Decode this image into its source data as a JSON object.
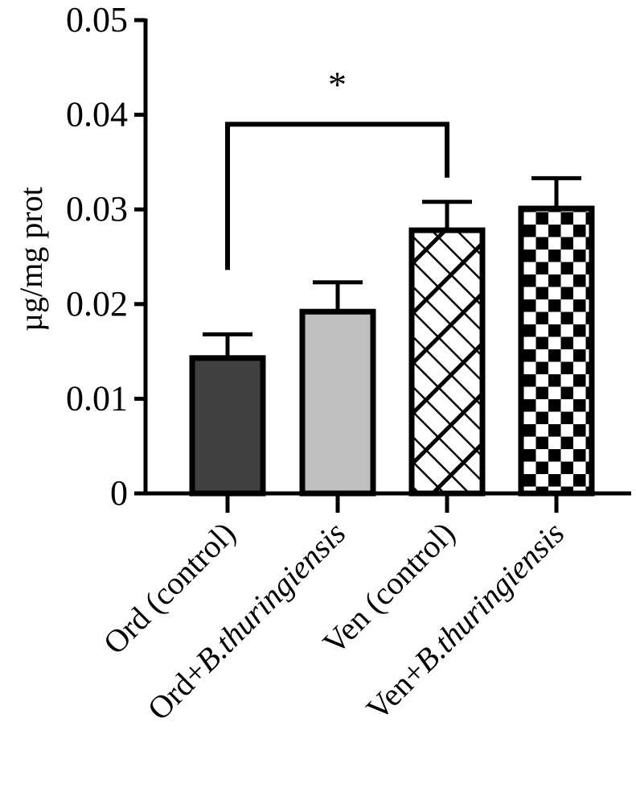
{
  "chart_data": {
    "type": "bar",
    "title": "",
    "xlabel": "",
    "ylabel": "µg/mg prot",
    "ylim": [
      0,
      0.05
    ],
    "y_ticks": [
      "0",
      "0.01",
      "0.02",
      "0.03",
      "0.04",
      "0.05"
    ],
    "grid": false,
    "bars": [
      {
        "label_plain": "Ord (control)",
        "label_prefix": "Ord (control)",
        "label_italic": "",
        "value": 0.0143,
        "error": 0.0025,
        "fill": "dark-gray",
        "pattern": "solid"
      },
      {
        "label_plain": "Ord+B.thuringiensis",
        "label_prefix": "Ord+",
        "label_italic": "B.thuringiensis",
        "value": 0.0192,
        "error": 0.0031,
        "fill": "light-gray",
        "pattern": "solid"
      },
      {
        "label_plain": "Ven (control)",
        "label_prefix": "Ven (control)",
        "label_italic": "",
        "value": 0.0278,
        "error": 0.003,
        "fill": "white",
        "pattern": "brick"
      },
      {
        "label_plain": "Ven+B.thuringiensis",
        "label_prefix": "Ven+",
        "label_italic": "B.thuringiensis",
        "value": 0.0301,
        "error": 0.0032,
        "fill": "white",
        "pattern": "checker"
      }
    ],
    "significance": [
      {
        "from": 0,
        "to": 2,
        "label": "*",
        "bracket_y": 0.039
      }
    ]
  },
  "colors": {
    "dark-gray": "#404040",
    "light-gray": "#bfbfbf",
    "white": "#ffffff",
    "stroke": "#000000"
  }
}
